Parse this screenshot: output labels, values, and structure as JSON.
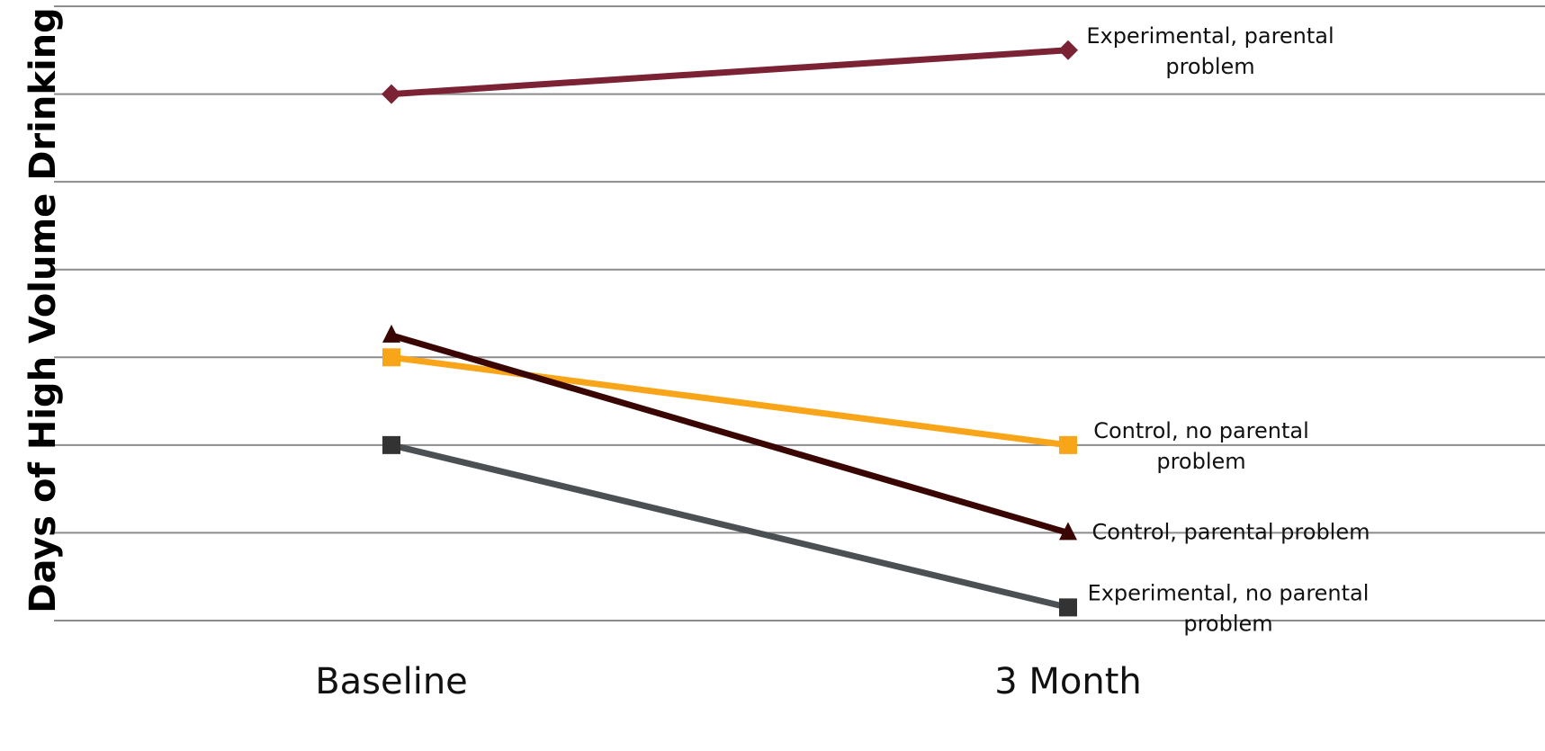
{
  "chart_data": {
    "type": "line",
    "title": "",
    "xlabel": "",
    "ylabel": "Days of High Volume Drinking",
    "categories": [
      "Baseline",
      "3 Month"
    ],
    "ylim": [
      0,
      7
    ],
    "grid": true,
    "legend": "none",
    "series": [
      {
        "name": "Experimental, parental problem",
        "label_lines": [
          "Experimental, parental",
          "problem"
        ],
        "values": [
          6.0,
          6.5
        ],
        "color": "#7b2335",
        "marker": "diamond"
      },
      {
        "name": "Control, no parental problem",
        "label_lines": [
          "Control, no parental",
          "problem"
        ],
        "values": [
          3.0,
          2.0
        ],
        "color": "#f9a51a",
        "marker": "square"
      },
      {
        "name": "Control, parental problem",
        "label_lines": [
          "Control, parental problem"
        ],
        "values": [
          3.25,
          1.0
        ],
        "color": "#3a0604",
        "marker": "triangle"
      },
      {
        "name": "Experimental, no parental problem",
        "label_lines": [
          "Experimental, no parental",
          "problem"
        ],
        "values": [
          2.0,
          0.15
        ],
        "color": "#4b5055",
        "marker_color": "#333333",
        "marker": "square"
      }
    ]
  }
}
